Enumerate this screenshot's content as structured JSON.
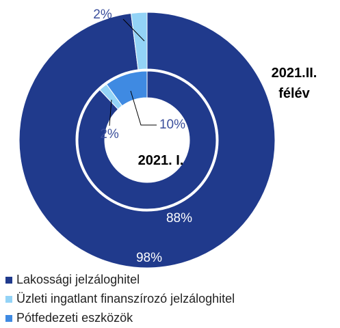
{
  "chart_data": {
    "type": "donut",
    "categories": [
      "2021. I.",
      "2021.II. félév"
    ],
    "series": [
      {
        "name": "Lakossági jelzáloghitel",
        "color": "#203a8c",
        "values": [
          88,
          98
        ],
        "value_labels": [
          "88%",
          "98%"
        ]
      },
      {
        "name": "Üzleti ingatlant finanszírozó jelzáloghitel",
        "color": "#93d3f6",
        "values": [
          2,
          2
        ],
        "value_labels": [
          "2%",
          "2%"
        ]
      },
      {
        "name": "Pótfedezeti eszközök",
        "color": "#3f8ae2",
        "values": [
          10,
          0
        ],
        "value_labels": [
          "10%",
          null
        ]
      }
    ],
    "legend": "bottom"
  }
}
